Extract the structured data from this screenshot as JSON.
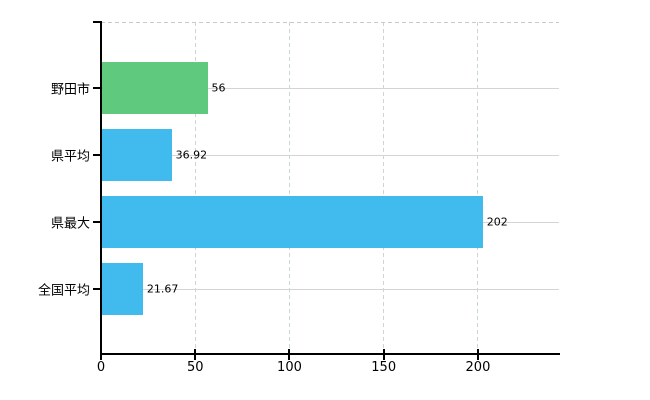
{
  "chart_data": {
    "type": "bar",
    "orientation": "horizontal",
    "title": "",
    "categories": [
      "野田市",
      "県平均",
      "県最大",
      "全国平均"
    ],
    "values": [
      56,
      36.92,
      202,
      21.67
    ],
    "value_labels": [
      "56",
      "36.92",
      "202",
      "21.67"
    ],
    "bar_colors": [
      "#5fc97d",
      "#41baee",
      "#41baee",
      "#41baee"
    ],
    "x_ticks": [
      0,
      50,
      100,
      150,
      200
    ],
    "x_tick_labels": [
      "0",
      "50",
      "100",
      "150",
      "200"
    ],
    "xlim": [
      0,
      243
    ],
    "legend": "none",
    "grid": {
      "vertical": "dashed",
      "horizontal": "solid",
      "top_border": "dashed"
    }
  },
  "colors": {
    "background": "#ffffff",
    "axis": "#000000",
    "vertical_grid": "#ccd8cc",
    "horizontal_grid": "#d4d4d4",
    "green_bar": "#5fc97d",
    "blue_bar": "#41baee",
    "text": "#000000"
  }
}
